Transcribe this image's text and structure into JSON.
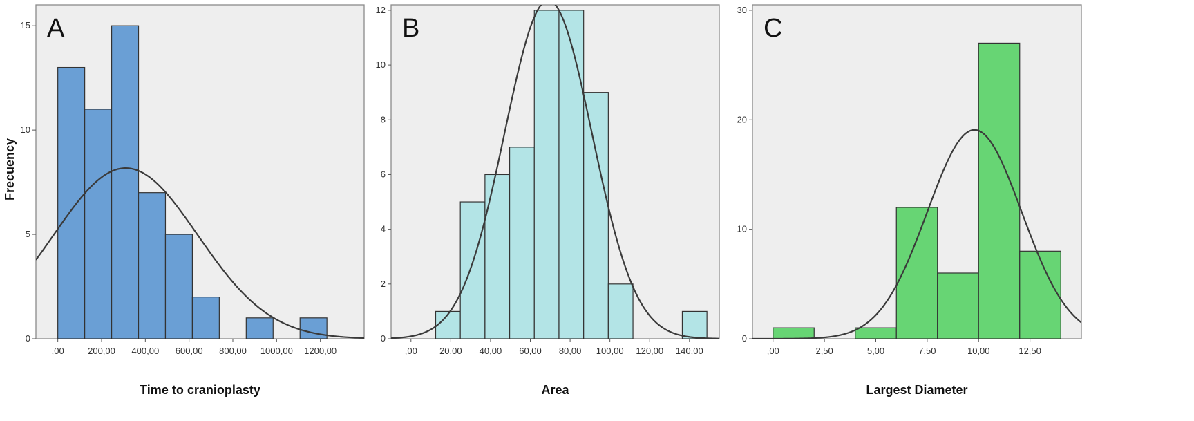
{
  "y_axis_label": "Frecuency",
  "chart_data": [
    {
      "type": "bar",
      "panel_label": "A",
      "xlabel": "Time to cranioplasty",
      "ylabel": "Frecuency",
      "x_ticks": [
        ",00",
        "200,00",
        "400,00",
        "600,00",
        "800,00",
        "1000,00",
        "1200,00"
      ],
      "x_tick_values": [
        0,
        200,
        400,
        600,
        800,
        1000,
        1200
      ],
      "y_ticks": [
        "0",
        "5",
        "10",
        "15"
      ],
      "y_tick_values": [
        0,
        5,
        10,
        15
      ],
      "xlim": [
        -100,
        1400
      ],
      "ylim": [
        0,
        16
      ],
      "bin_width": 123,
      "bin_starts": [
        0,
        123,
        246,
        369,
        492,
        615,
        738,
        861,
        984,
        1107
      ],
      "values": [
        13,
        11,
        15,
        7,
        5,
        2,
        0,
        1,
        0,
        1
      ],
      "normal_curve": {
        "mean": 310,
        "sd": 330,
        "n": 55
      },
      "bar_color": "#6a9fd5"
    },
    {
      "type": "bar",
      "panel_label": "B",
      "xlabel": "Area",
      "ylabel": "",
      "x_ticks": [
        ",00",
        "20,00",
        "40,00",
        "60,00",
        "80,00",
        "100,00",
        "120,00",
        "140,00"
      ],
      "x_tick_values": [
        0,
        20,
        40,
        60,
        80,
        100,
        120,
        140
      ],
      "y_ticks": [
        "0",
        "2",
        "4",
        "6",
        "8",
        "10",
        "12"
      ],
      "y_tick_values": [
        0,
        2,
        4,
        6,
        8,
        10,
        12
      ],
      "xlim": [
        -10,
        155
      ],
      "ylim": [
        0,
        12.2
      ],
      "bin_width": 12.4,
      "bin_starts": [
        12.4,
        24.8,
        37.2,
        49.6,
        62,
        74.4,
        86.8,
        99.2,
        111.6,
        124,
        136.4
      ],
      "values": [
        1,
        5,
        6,
        7,
        12,
        12,
        9,
        2,
        0,
        0,
        1
      ],
      "normal_curve": {
        "mean": 69,
        "sd": 22,
        "n": 55
      },
      "bar_color": "#b3e4e6"
    },
    {
      "type": "bar",
      "panel_label": "C",
      "xlabel": "Largest Diameter",
      "ylabel": "",
      "x_ticks": [
        ",00",
        "2,50",
        "5,00",
        "7,50",
        "10,00",
        "12,50"
      ],
      "x_tick_values": [
        0,
        2.5,
        5,
        7.5,
        10,
        12.5
      ],
      "y_ticks": [
        "0",
        "10",
        "20",
        "30"
      ],
      "y_tick_values": [
        0,
        10,
        20,
        30
      ],
      "xlim": [
        -1,
        15
      ],
      "ylim": [
        0,
        30.5
      ],
      "bin_width": 2,
      "bin_starts": [
        0,
        2,
        4,
        6,
        8,
        10,
        12
      ],
      "values": [
        1,
        0,
        1,
        12,
        6,
        27,
        8
      ],
      "normal_curve": {
        "mean": 9.8,
        "sd": 2.3,
        "n": 55
      },
      "bar_color": "#67d574"
    }
  ]
}
